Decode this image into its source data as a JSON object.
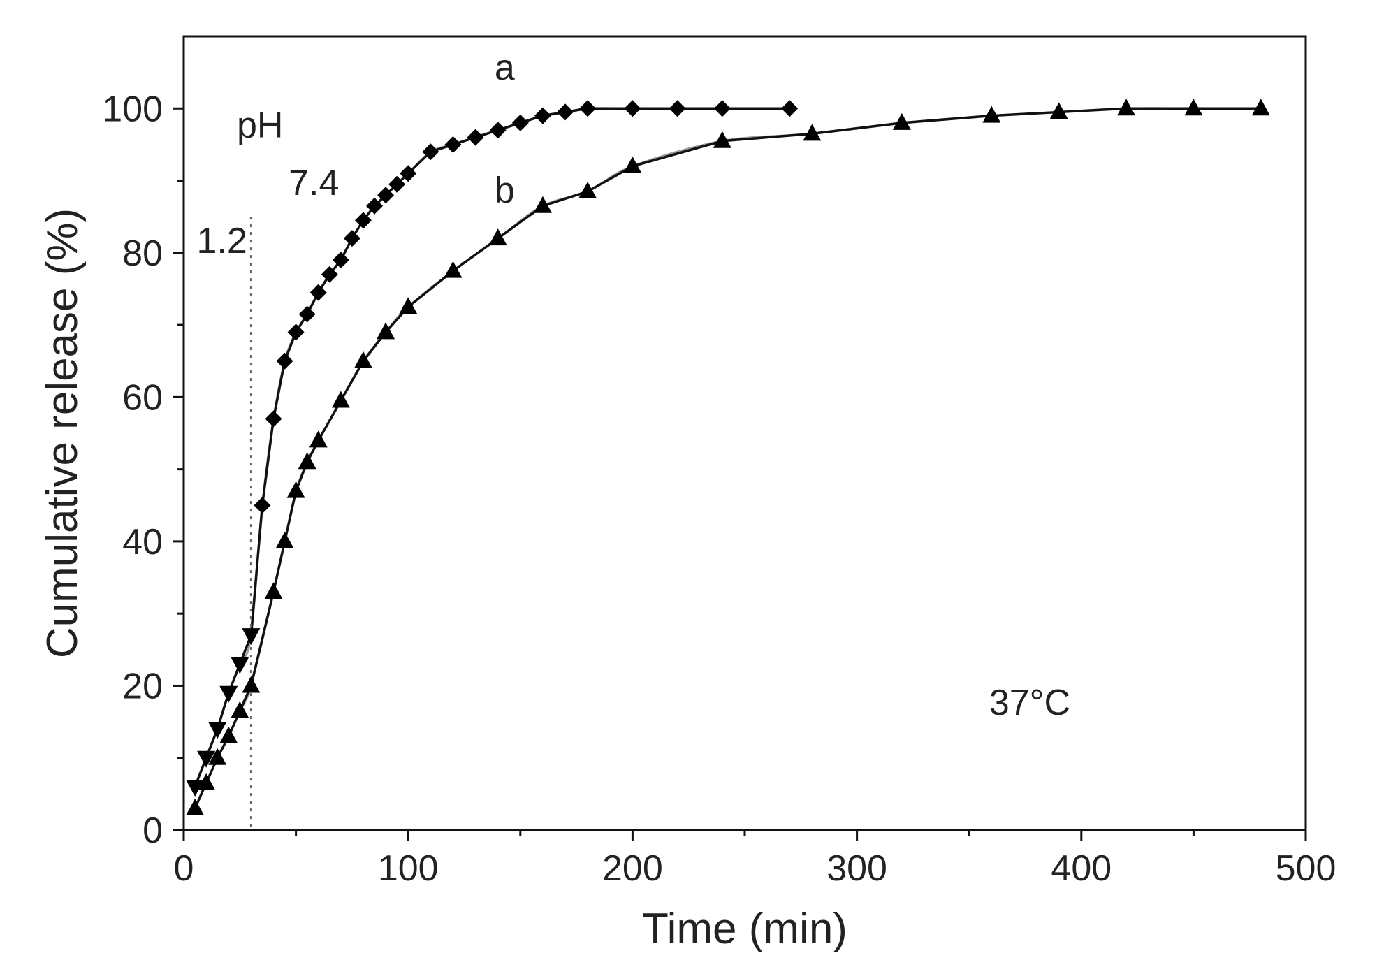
{
  "chart_data": {
    "type": "line",
    "title": "",
    "xlabel": "Time (min)",
    "ylabel": "Cumulative release (%)",
    "xlim": [
      0,
      500
    ],
    "ylim": [
      0,
      110
    ],
    "xticks": [
      0,
      100,
      200,
      300,
      400,
      500
    ],
    "yticks": [
      0,
      20,
      40,
      60,
      80,
      100
    ],
    "grid": false,
    "series": [
      {
        "name": "a",
        "marker": "diamond",
        "marker_ph12": "triangle-down",
        "x": [
          5,
          10,
          15,
          20,
          25,
          30,
          35,
          40,
          45,
          50,
          55,
          60,
          65,
          70,
          75,
          80,
          85,
          90,
          95,
          100,
          110,
          120,
          130,
          140,
          150,
          160,
          170,
          180,
          200,
          220,
          240,
          270
        ],
        "y": [
          6,
          10,
          14,
          19,
          23,
          27,
          45,
          57,
          65,
          69,
          71.5,
          74.5,
          77,
          79,
          82,
          84.5,
          86.5,
          88,
          89.5,
          91,
          94,
          95,
          96,
          97,
          98,
          99,
          99.5,
          100,
          100,
          100,
          100,
          100
        ]
      },
      {
        "name": "b",
        "marker": "triangle-up",
        "x": [
          5,
          10,
          15,
          20,
          25,
          30,
          40,
          45,
          50,
          55,
          60,
          70,
          80,
          90,
          100,
          120,
          140,
          160,
          180,
          200,
          240,
          280,
          320,
          360,
          390,
          420,
          450,
          480
        ],
        "y": [
          3,
          6.5,
          10,
          13,
          16.5,
          20,
          33,
          40,
          47,
          51,
          54,
          59.5,
          65,
          69,
          72.5,
          77.5,
          82,
          86.5,
          88.5,
          92,
          95.5,
          96.5,
          98,
          99,
          99.5,
          100,
          100,
          100
        ]
      }
    ],
    "reference_line": {
      "x": 30,
      "style": "dotted"
    },
    "annotations": {
      "label_a": "a",
      "label_b": "b",
      "ph_label": "pH",
      "ph_low": "1.2",
      "ph_high": "7.4",
      "temperature": "37°C"
    },
    "tick_labels_x": [
      "0",
      "100",
      "200",
      "300",
      "400",
      "500"
    ],
    "tick_labels_y": [
      "0",
      "20",
      "40",
      "60",
      "80",
      "100"
    ]
  }
}
